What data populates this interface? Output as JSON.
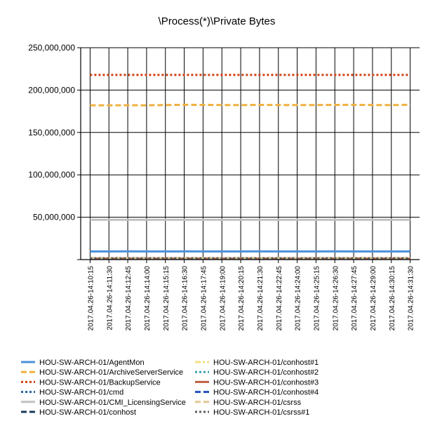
{
  "chart_data": {
    "type": "line",
    "title": "\\Process(*)\\Private Bytes",
    "xlabel": "",
    "ylabel": "",
    "ylim": [
      0,
      250000000
    ],
    "y_ticks": [
      0,
      50000000,
      100000000,
      150000000,
      200000000,
      250000000
    ],
    "y_tick_labels": [
      "",
      "50,000,000",
      "100,000,000",
      "150,000,000",
      "200,000,000",
      "250,000,000"
    ],
    "grid": true,
    "legend_position": "bottom",
    "x_tick_labels": [
      "2017.04.26-14:10:15",
      "2017.04.26-14:11:30",
      "2017.04.26-14:12:45",
      "2017.04.26-14:14:00",
      "2017.04.26-14:15:15",
      "2017.04.26-14:16:30",
      "2017.04.26-14:17:45",
      "2017.04.26-14:19:00",
      "2017.04.26-14:20:15",
      "2017.04.26-14:21:30",
      "2017.04.26-14:22:45",
      "2017.04.26-14:24:00",
      "2017.04.26-14:25:15",
      "2017.04.26-14:26:30",
      "2017.04.26-14:27:45",
      "2017.04.26-14:29:00",
      "2017.04.26-14:30:15",
      "2017.04.26-14:31:30"
    ],
    "series": [
      {
        "name": "HOU-SW-ARCH-01/AgentMon",
        "color": "#4a90d9",
        "dash": "solid",
        "values": [
          9600000,
          9600000,
          9650000,
          9600000,
          9600000,
          9650000,
          9600000,
          9600000,
          9600000,
          9650000,
          9600000,
          9600000,
          9600000,
          9650000,
          9600000,
          9600000,
          9600000,
          9600000
        ]
      },
      {
        "name": "HOU-SW-ARCH-01/ArchiveServerService",
        "color": "#f0b040",
        "dash": "dash",
        "values": [
          182000000,
          182000000,
          182100000,
          182000000,
          182400000,
          182600000,
          182500000,
          182400000,
          182300000,
          182500000,
          182400000,
          182300000,
          182400000,
          182500000,
          182600000,
          182400000,
          182300000,
          182700000
        ]
      },
      {
        "name": "HOU-SW-ARCH-01/BackupService",
        "color": "#d04010",
        "dash": "dot",
        "values": [
          218000000,
          218000000,
          218000000,
          218000000,
          218000000,
          218000000,
          218000000,
          218000000,
          218000000,
          218000000,
          218000000,
          218000000,
          218000000,
          218000000,
          218000000,
          218000000,
          218000000,
          218000000
        ]
      },
      {
        "name": "HOU-SW-ARCH-01/cmd",
        "color": "#2060a0",
        "dash": "dot",
        "values": [
          1500000,
          1500000,
          1500000,
          1500000,
          1500000,
          1500000,
          1500000,
          1500000,
          1500000,
          1500000,
          1500000,
          1500000,
          1500000,
          1500000,
          1500000,
          1500000,
          1500000,
          1500000
        ]
      },
      {
        "name": "HOU-SW-ARCH-01/CMI_LicensingService",
        "color": "#c0c0c0",
        "dash": "solid",
        "values": [
          47000000,
          47000000,
          47000000,
          47000000,
          47000000,
          47000000,
          47000000,
          47000000,
          47000000,
          47000000,
          47000000,
          47000000,
          47000000,
          47000000,
          47000000,
          47000000,
          47000000,
          47000000
        ]
      },
      {
        "name": "HOU-SW-ARCH-01/conhost",
        "color": "#1a3a5a",
        "dash": "dash",
        "values": [
          900000,
          900000,
          900000,
          900000,
          900000,
          900000,
          900000,
          900000,
          900000,
          900000,
          900000,
          900000,
          900000,
          900000,
          900000,
          900000,
          900000,
          900000
        ]
      },
      {
        "name": "HOU-SW-ARCH-01/conhost#1",
        "color": "#f5e080",
        "dash": "dashdot",
        "values": [
          1100000,
          1100000,
          1100000,
          1100000,
          1100000,
          1100000,
          1100000,
          1100000,
          1100000,
          1100000,
          1100000,
          1100000,
          1100000,
          1100000,
          1100000,
          1100000,
          1100000,
          1100000
        ]
      },
      {
        "name": "HOU-SW-ARCH-01/conhost#2",
        "color": "#40a0b0",
        "dash": "dot",
        "values": [
          1000000,
          1000000,
          1000000,
          1000000,
          1000000,
          1000000,
          1000000,
          1000000,
          1000000,
          1000000,
          1000000,
          1000000,
          1000000,
          1000000,
          1000000,
          1000000,
          1000000,
          1000000
        ]
      },
      {
        "name": "HOU-SW-ARCH-01/conhost#3",
        "color": "#c06040",
        "dash": "solid",
        "values": [
          1200000,
          1200000,
          1200000,
          1200000,
          1200000,
          1200000,
          1200000,
          1200000,
          1200000,
          1200000,
          1200000,
          1200000,
          1200000,
          1200000,
          1200000,
          1200000,
          1200000,
          1200000
        ]
      },
      {
        "name": "HOU-SW-ARCH-01/conhost#4",
        "color": "#2050c0",
        "dash": "dash",
        "values": [
          1300000,
          1300000,
          1300000,
          1300000,
          1300000,
          1300000,
          1300000,
          1300000,
          1300000,
          1300000,
          1300000,
          1300000,
          1300000,
          1300000,
          1300000,
          1300000,
          1300000,
          1300000
        ]
      },
      {
        "name": "HOU-SW-ARCH-01/csrss",
        "color": "#e0c890",
        "dash": "dash",
        "values": [
          1800000,
          1800000,
          1800000,
          1800000,
          1800000,
          1800000,
          1800000,
          1800000,
          1800000,
          1800000,
          1800000,
          1800000,
          1800000,
          1800000,
          1800000,
          1800000,
          1800000,
          1800000
        ]
      },
      {
        "name": "HOU-SW-ARCH-01/csrss#1",
        "color": "#606060",
        "dash": "dot",
        "values": [
          1600000,
          1600000,
          1600000,
          1600000,
          1600000,
          1600000,
          1600000,
          1600000,
          1600000,
          1600000,
          1600000,
          1600000,
          1600000,
          1600000,
          1600000,
          1600000,
          1600000,
          1600000
        ]
      }
    ]
  }
}
